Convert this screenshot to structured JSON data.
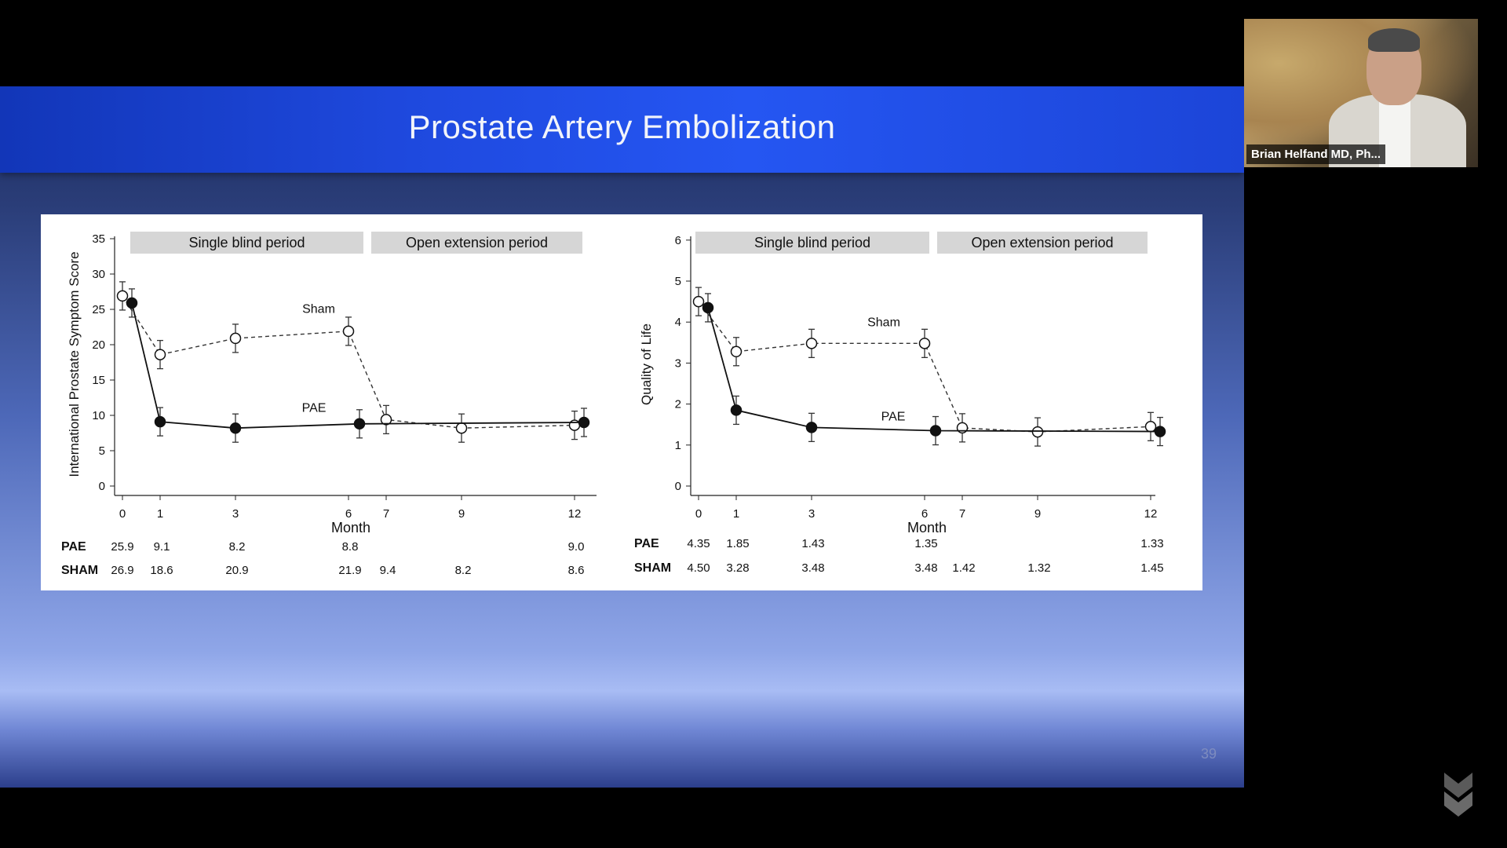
{
  "slide": {
    "title": "Prostate Artery Embolization",
    "number": "39"
  },
  "video": {
    "participant_name": "Brian Helfand MD, Ph..."
  },
  "chart_data": [
    {
      "type": "line",
      "ylabel": "International Prostate Symptom Score",
      "xlabel": "Month",
      "x_ticks": [
        0,
        1,
        3,
        6,
        7,
        9,
        12
      ],
      "y_ticks": [
        0,
        5,
        10,
        15,
        20,
        25,
        30,
        35
      ],
      "ylim": [
        0,
        35
      ],
      "periods": [
        "Single blind period",
        "Open extension period"
      ],
      "series": [
        {
          "name": "Sham",
          "style": "dashed-open",
          "x": [
            0,
            1,
            3,
            6,
            7,
            9,
            12
          ],
          "values": [
            26.9,
            18.6,
            20.9,
            21.9,
            9.4,
            8.2,
            8.6
          ]
        },
        {
          "name": "PAE",
          "style": "solid-filled",
          "x": [
            0,
            1,
            3,
            6,
            12
          ],
          "values": [
            25.9,
            9.1,
            8.2,
            8.8,
            9.0
          ]
        }
      ],
      "table": {
        "rows": [
          {
            "label": "PAE",
            "cells": [
              "25.9",
              "9.1",
              "8.2",
              "8.8",
              "",
              "",
              "9.0"
            ]
          },
          {
            "label": "SHAM",
            "cells": [
              "26.9",
              "18.6",
              "20.9",
              "21.9",
              "9.4",
              "8.2",
              "8.6"
            ]
          }
        ]
      }
    },
    {
      "type": "line",
      "ylabel": "Quality of Life",
      "xlabel": "Month",
      "x_ticks": [
        0,
        1,
        3,
        6,
        7,
        9,
        12
      ],
      "y_ticks": [
        0,
        1,
        2,
        3,
        4,
        5,
        6
      ],
      "ylim": [
        0,
        6
      ],
      "periods": [
        "Single blind period",
        "Open extension period"
      ],
      "series": [
        {
          "name": "Sham",
          "style": "dashed-open",
          "x": [
            0,
            1,
            3,
            6,
            7,
            9,
            12
          ],
          "values": [
            4.5,
            3.28,
            3.48,
            3.48,
            1.42,
            1.32,
            1.45
          ]
        },
        {
          "name": "PAE",
          "style": "solid-filled",
          "x": [
            0,
            1,
            3,
            6,
            12
          ],
          "values": [
            4.35,
            1.85,
            1.43,
            1.35,
            1.33
          ]
        }
      ],
      "table": {
        "rows": [
          {
            "label": "PAE",
            "cells": [
              "4.35",
              "1.85",
              "1.43",
              "1.35",
              "",
              "",
              "1.33"
            ]
          },
          {
            "label": "SHAM",
            "cells": [
              "4.50",
              "3.28",
              "3.48",
              "3.48",
              "1.42",
              "1.32",
              "1.45"
            ]
          }
        ]
      }
    }
  ]
}
